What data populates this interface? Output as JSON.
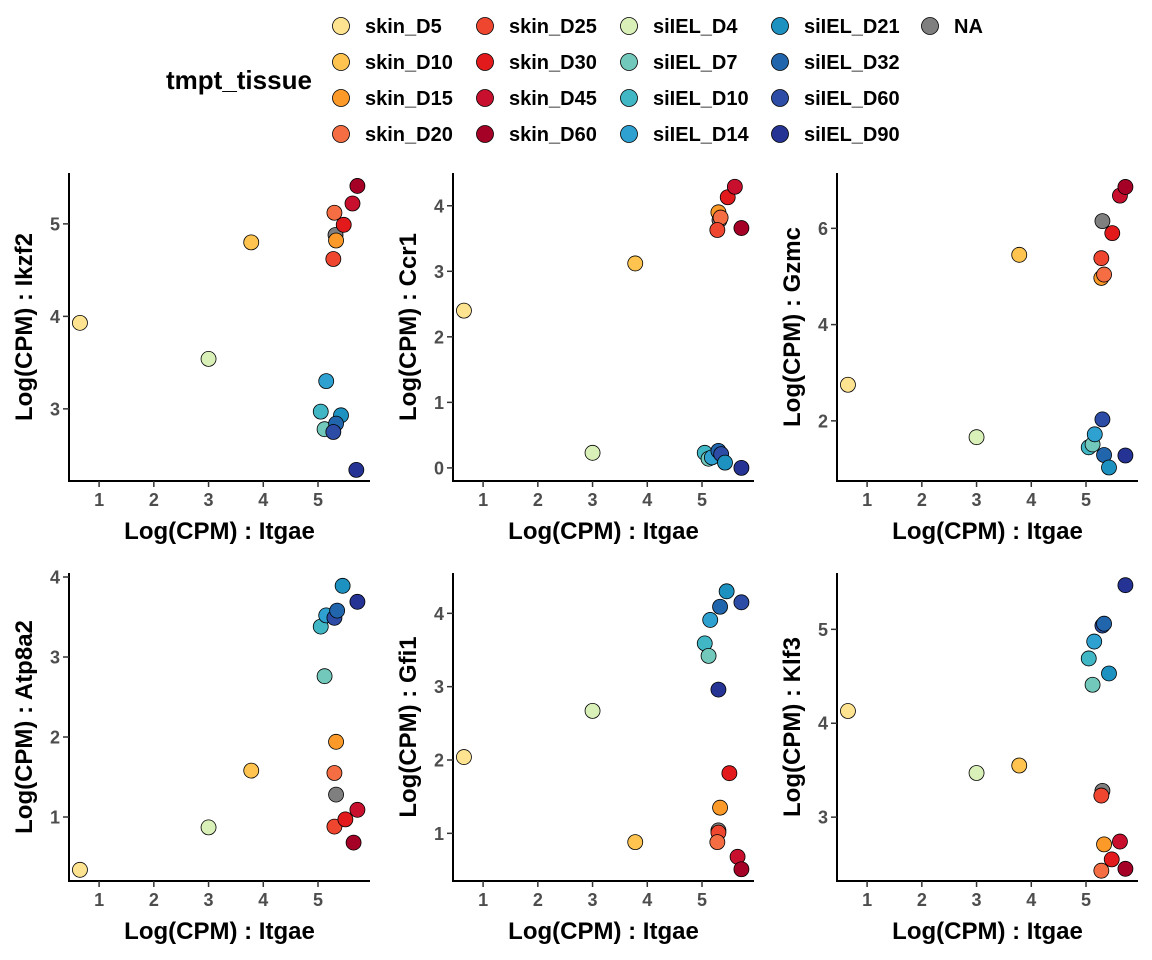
{
  "legend": {
    "title": "tmpt_tissue",
    "entries": [
      {
        "label": "skin_D5",
        "color": "#FEE391"
      },
      {
        "label": "skin_D10",
        "color": "#FEC44F"
      },
      {
        "label": "skin_D15",
        "color": "#FB9A29"
      },
      {
        "label": "skin_D20",
        "color": "#F46D43"
      },
      {
        "label": "skin_D25",
        "color": "#EF4630"
      },
      {
        "label": "skin_D30",
        "color": "#E31A1C"
      },
      {
        "label": "skin_D45",
        "color": "#C8102E"
      },
      {
        "label": "skin_D60",
        "color": "#A50026"
      },
      {
        "label": "siIEL_D4",
        "color": "#D9F0B9"
      },
      {
        "label": "siIEL_D7",
        "color": "#72C8BA"
      },
      {
        "label": "siIEL_D10",
        "color": "#41B6C4"
      },
      {
        "label": "siIEL_D14",
        "color": "#2FA1D0"
      },
      {
        "label": "siIEL_D21",
        "color": "#1D91C0"
      },
      {
        "label": "siIEL_D32",
        "color": "#2166AC"
      },
      {
        "label": "siIEL_D60",
        "color": "#2C4CA5"
      },
      {
        "label": "siIEL_D90",
        "color": "#253494"
      },
      {
        "label": "NA",
        "color": "#7F7F7F"
      }
    ]
  },
  "chart_data": [
    {
      "type": "scatter",
      "xlabel": "Log(CPM) : Itgae",
      "ylabel": "Log(CPM) : Ikzf2",
      "xlim": [
        0.45,
        5.95
      ],
      "ylim": [
        2.22,
        5.55
      ],
      "xticks": [
        1,
        2,
        3,
        4,
        5
      ],
      "yticks": [
        3,
        4,
        5
      ],
      "points": [
        {
          "x": 0.65,
          "y": 3.93,
          "group": "skin_D5"
        },
        {
          "x": 3.0,
          "y": 3.54,
          "group": "siIEL_D4"
        },
        {
          "x": 3.78,
          "y": 4.8,
          "group": "skin_D10"
        },
        {
          "x": 5.3,
          "y": 5.12,
          "group": "skin_D20"
        },
        {
          "x": 5.32,
          "y": 4.88,
          "group": "NA"
        },
        {
          "x": 5.33,
          "y": 4.82,
          "group": "skin_D15"
        },
        {
          "x": 5.28,
          "y": 4.62,
          "group": "skin_D25"
        },
        {
          "x": 5.47,
          "y": 4.99,
          "group": "skin_D30"
        },
        {
          "x": 5.63,
          "y": 5.22,
          "group": "skin_D45"
        },
        {
          "x": 5.72,
          "y": 5.41,
          "group": "skin_D60"
        },
        {
          "x": 5.15,
          "y": 3.3,
          "group": "siIEL_D14"
        },
        {
          "x": 5.05,
          "y": 2.97,
          "group": "siIEL_D10"
        },
        {
          "x": 5.12,
          "y": 2.78,
          "group": "siIEL_D7"
        },
        {
          "x": 5.42,
          "y": 2.93,
          "group": "siIEL_D21"
        },
        {
          "x": 5.33,
          "y": 2.84,
          "group": "siIEL_D32"
        },
        {
          "x": 5.28,
          "y": 2.75,
          "group": "siIEL_D60"
        },
        {
          "x": 5.7,
          "y": 2.34,
          "group": "siIEL_D90"
        }
      ]
    },
    {
      "type": "scatter",
      "xlabel": "Log(CPM) : Itgae",
      "ylabel": "Log(CPM) : Ccr1",
      "xlim": [
        0.45,
        5.95
      ],
      "ylim": [
        -0.2,
        4.5
      ],
      "xticks": [
        1,
        2,
        3,
        4,
        5
      ],
      "yticks": [
        0,
        1,
        2,
        3,
        4
      ],
      "points": [
        {
          "x": 0.65,
          "y": 2.4,
          "group": "skin_D5"
        },
        {
          "x": 3.0,
          "y": 0.23,
          "group": "siIEL_D4"
        },
        {
          "x": 3.78,
          "y": 3.12,
          "group": "skin_D10"
        },
        {
          "x": 5.3,
          "y": 3.9,
          "group": "skin_D15"
        },
        {
          "x": 5.32,
          "y": 3.78,
          "group": "NA"
        },
        {
          "x": 5.34,
          "y": 3.82,
          "group": "skin_D20"
        },
        {
          "x": 5.28,
          "y": 3.63,
          "group": "skin_D25"
        },
        {
          "x": 5.47,
          "y": 4.13,
          "group": "skin_D30"
        },
        {
          "x": 5.6,
          "y": 4.29,
          "group": "skin_D45"
        },
        {
          "x": 5.72,
          "y": 3.66,
          "group": "skin_D60"
        },
        {
          "x": 5.05,
          "y": 0.23,
          "group": "siIEL_D10"
        },
        {
          "x": 5.12,
          "y": 0.14,
          "group": "siIEL_D7"
        },
        {
          "x": 5.18,
          "y": 0.16,
          "group": "siIEL_D14"
        },
        {
          "x": 5.3,
          "y": 0.26,
          "group": "siIEL_D32"
        },
        {
          "x": 5.35,
          "y": 0.21,
          "group": "siIEL_D60"
        },
        {
          "x": 5.42,
          "y": 0.08,
          "group": "siIEL_D21"
        },
        {
          "x": 5.72,
          "y": 0.0,
          "group": "siIEL_D90"
        }
      ]
    },
    {
      "type": "scatter",
      "xlabel": "Log(CPM) : Itgae",
      "ylabel": "Log(CPM) : Gzmc",
      "xlim": [
        0.45,
        5.95
      ],
      "ylim": [
        0.75,
        7.15
      ],
      "xticks": [
        1,
        2,
        3,
        4,
        5
      ],
      "yticks": [
        2,
        4,
        6
      ],
      "points": [
        {
          "x": 0.65,
          "y": 2.75,
          "group": "skin_D5"
        },
        {
          "x": 3.0,
          "y": 1.66,
          "group": "siIEL_D4"
        },
        {
          "x": 3.78,
          "y": 5.45,
          "group": "skin_D10"
        },
        {
          "x": 5.3,
          "y": 6.15,
          "group": "NA"
        },
        {
          "x": 5.28,
          "y": 5.38,
          "group": "skin_D25"
        },
        {
          "x": 5.48,
          "y": 5.9,
          "group": "skin_D30"
        },
        {
          "x": 5.28,
          "y": 4.97,
          "group": "skin_D15"
        },
        {
          "x": 5.33,
          "y": 5.04,
          "group": "skin_D20"
        },
        {
          "x": 5.62,
          "y": 6.68,
          "group": "skin_D45"
        },
        {
          "x": 5.72,
          "y": 6.86,
          "group": "skin_D60"
        },
        {
          "x": 5.05,
          "y": 1.45,
          "group": "siIEL_D10"
        },
        {
          "x": 5.12,
          "y": 1.51,
          "group": "siIEL_D7"
        },
        {
          "x": 5.16,
          "y": 1.72,
          "group": "siIEL_D14"
        },
        {
          "x": 5.3,
          "y": 2.03,
          "group": "siIEL_D60"
        },
        {
          "x": 5.33,
          "y": 1.29,
          "group": "siIEL_D32"
        },
        {
          "x": 5.42,
          "y": 1.03,
          "group": "siIEL_D21"
        },
        {
          "x": 5.72,
          "y": 1.28,
          "group": "siIEL_D90"
        }
      ]
    },
    {
      "type": "scatter",
      "xlabel": "Log(CPM) : Itgae",
      "ylabel": "Log(CPM) : Atp8a2",
      "xlim": [
        0.45,
        5.95
      ],
      "ylim": [
        0.2,
        4.05
      ],
      "xticks": [
        1,
        2,
        3,
        4,
        5
      ],
      "yticks": [
        1,
        2,
        3,
        4
      ],
      "points": [
        {
          "x": 0.65,
          "y": 0.34,
          "group": "skin_D5"
        },
        {
          "x": 3.0,
          "y": 0.87,
          "group": "siIEL_D4"
        },
        {
          "x": 3.78,
          "y": 1.58,
          "group": "skin_D10"
        },
        {
          "x": 5.33,
          "y": 1.94,
          "group": "skin_D15"
        },
        {
          "x": 5.3,
          "y": 1.55,
          "group": "skin_D20"
        },
        {
          "x": 5.33,
          "y": 1.28,
          "group": "NA"
        },
        {
          "x": 5.3,
          "y": 0.88,
          "group": "skin_D25"
        },
        {
          "x": 5.5,
          "y": 0.97,
          "group": "skin_D30"
        },
        {
          "x": 5.72,
          "y": 1.09,
          "group": "skin_D45"
        },
        {
          "x": 5.65,
          "y": 0.68,
          "group": "skin_D60"
        },
        {
          "x": 5.12,
          "y": 2.76,
          "group": "siIEL_D7"
        },
        {
          "x": 5.05,
          "y": 3.38,
          "group": "siIEL_D10"
        },
        {
          "x": 5.15,
          "y": 3.52,
          "group": "siIEL_D14"
        },
        {
          "x": 5.3,
          "y": 3.49,
          "group": "siIEL_D60"
        },
        {
          "x": 5.35,
          "y": 3.58,
          "group": "siIEL_D32"
        },
        {
          "x": 5.45,
          "y": 3.89,
          "group": "siIEL_D21"
        },
        {
          "x": 5.72,
          "y": 3.69,
          "group": "siIEL_D90"
        }
      ]
    },
    {
      "type": "scatter",
      "xlabel": "Log(CPM) : Itgae",
      "ylabel": "Log(CPM) : Gfi1",
      "xlim": [
        0.45,
        5.95
      ],
      "ylim": [
        0.35,
        4.55
      ],
      "xticks": [
        1,
        2,
        3,
        4,
        5
      ],
      "yticks": [
        1,
        2,
        3,
        4
      ],
      "points": [
        {
          "x": 0.65,
          "y": 2.04,
          "group": "skin_D5"
        },
        {
          "x": 3.0,
          "y": 2.67,
          "group": "siIEL_D4"
        },
        {
          "x": 3.78,
          "y": 0.88,
          "group": "skin_D10"
        },
        {
          "x": 5.33,
          "y": 1.35,
          "group": "skin_D15"
        },
        {
          "x": 5.3,
          "y": 1.04,
          "group": "NA"
        },
        {
          "x": 5.3,
          "y": 1.01,
          "group": "skin_D25"
        },
        {
          "x": 5.28,
          "y": 0.88,
          "group": "skin_D20"
        },
        {
          "x": 5.5,
          "y": 1.82,
          "group": "skin_D30"
        },
        {
          "x": 5.65,
          "y": 0.68,
          "group": "skin_D45"
        },
        {
          "x": 5.72,
          "y": 0.51,
          "group": "skin_D60"
        },
        {
          "x": 5.05,
          "y": 3.59,
          "group": "siIEL_D10"
        },
        {
          "x": 5.12,
          "y": 3.42,
          "group": "siIEL_D7"
        },
        {
          "x": 5.15,
          "y": 3.91,
          "group": "siIEL_D14"
        },
        {
          "x": 5.3,
          "y": 2.96,
          "group": "siIEL_D90"
        },
        {
          "x": 5.33,
          "y": 4.09,
          "group": "siIEL_D32"
        },
        {
          "x": 5.45,
          "y": 4.3,
          "group": "siIEL_D21"
        },
        {
          "x": 5.72,
          "y": 4.15,
          "group": "siIEL_D60"
        }
      ]
    },
    {
      "type": "scatter",
      "xlabel": "Log(CPM) : Itgae",
      "ylabel": "Log(CPM) : Klf3",
      "xlim": [
        0.45,
        5.95
      ],
      "ylim": [
        2.32,
        5.6
      ],
      "xticks": [
        1,
        2,
        3,
        4,
        5
      ],
      "yticks": [
        3,
        4,
        5
      ],
      "points": [
        {
          "x": 0.65,
          "y": 4.13,
          "group": "skin_D5"
        },
        {
          "x": 3.0,
          "y": 3.47,
          "group": "siIEL_D4"
        },
        {
          "x": 3.78,
          "y": 3.55,
          "group": "skin_D10"
        },
        {
          "x": 5.3,
          "y": 3.28,
          "group": "NA"
        },
        {
          "x": 5.28,
          "y": 3.23,
          "group": "skin_D25"
        },
        {
          "x": 5.33,
          "y": 2.71,
          "group": "skin_D15"
        },
        {
          "x": 5.28,
          "y": 2.43,
          "group": "skin_D20"
        },
        {
          "x": 5.47,
          "y": 2.55,
          "group": "skin_D30"
        },
        {
          "x": 5.62,
          "y": 2.74,
          "group": "skin_D45"
        },
        {
          "x": 5.72,
          "y": 2.45,
          "group": "skin_D60"
        },
        {
          "x": 5.05,
          "y": 4.69,
          "group": "siIEL_D10"
        },
        {
          "x": 5.12,
          "y": 4.41,
          "group": "siIEL_D7"
        },
        {
          "x": 5.15,
          "y": 4.87,
          "group": "siIEL_D14"
        },
        {
          "x": 5.3,
          "y": 5.04,
          "group": "siIEL_D60"
        },
        {
          "x": 5.33,
          "y": 5.06,
          "group": "siIEL_D32"
        },
        {
          "x": 5.42,
          "y": 4.53,
          "group": "siIEL_D21"
        },
        {
          "x": 5.72,
          "y": 5.47,
          "group": "siIEL_D90"
        }
      ]
    }
  ]
}
